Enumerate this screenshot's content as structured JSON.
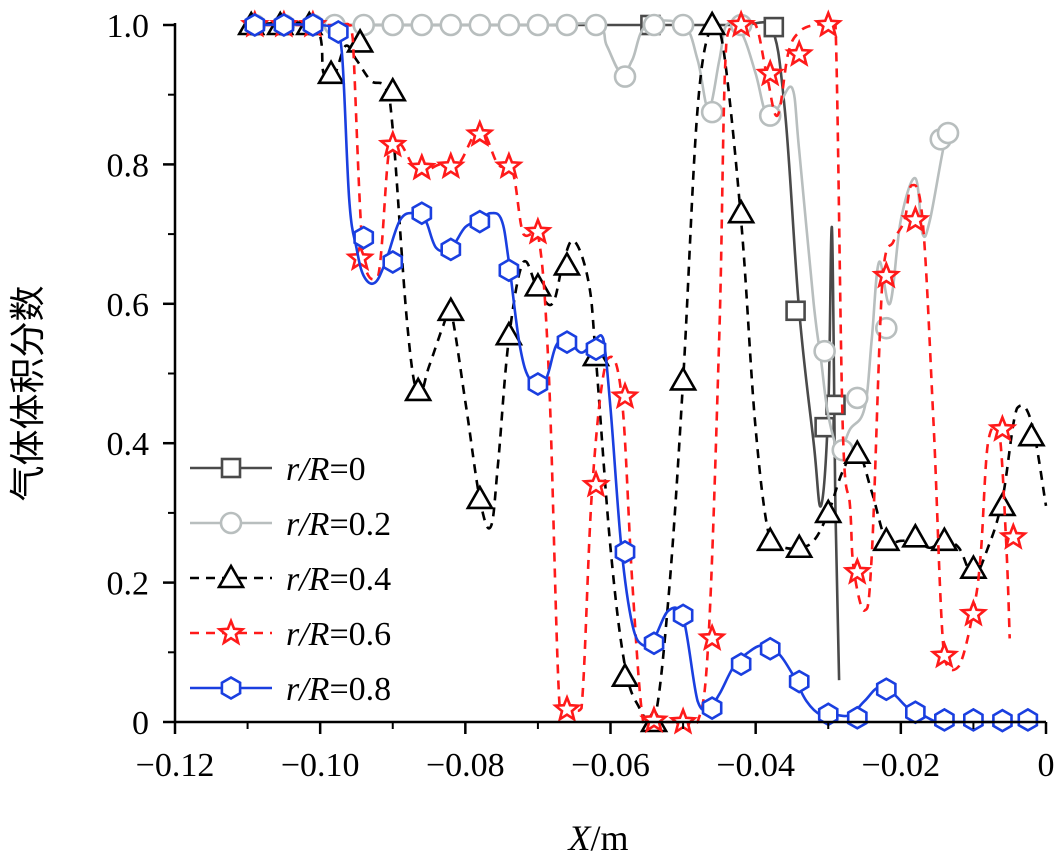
{
  "chart_data": {
    "type": "line",
    "ylabel": "气体体积分数",
    "xlabel_italic": "X",
    "xlabel_unit": "/m",
    "xlim": [
      -0.12,
      0
    ],
    "ylim": [
      0,
      1.0
    ],
    "x_ticks": [
      -0.12,
      -0.1,
      -0.08,
      -0.06,
      -0.04,
      -0.02,
      0
    ],
    "x_tick_labels": [
      "−0.12",
      "−0.10",
      "−0.08",
      "−0.06",
      "−0.04",
      "−0.02",
      "0"
    ],
    "y_ticks": [
      0,
      0.2,
      0.4,
      0.6,
      0.8,
      1.0
    ],
    "y_tick_labels": [
      "0",
      "0.2",
      "0.4",
      "0.6",
      "0.8",
      "1.0"
    ],
    "grid": false,
    "legend_position": "left",
    "series": [
      {
        "name": "r/R=0",
        "label_italic": "r/R",
        "label_value": "=0",
        "color": "#4a4a4a",
        "dash": "",
        "marker": "square",
        "line_x": [
          -0.11,
          -0.1,
          -0.09,
          -0.08,
          -0.07,
          -0.06,
          -0.05,
          -0.042,
          -0.038,
          -0.036,
          -0.034,
          -0.032,
          -0.031,
          -0.03,
          -0.0295,
          -0.029,
          -0.0285
        ],
        "line_y": [
          1.0,
          1.0,
          1.0,
          1.0,
          1.0,
          1.0,
          1.0,
          1.0,
          1.0,
          0.88,
          0.59,
          0.4,
          0.31,
          0.45,
          0.71,
          0.3,
          0.06
        ],
        "markers_x": [
          -0.0545,
          -0.0375,
          -0.0345,
          -0.0305,
          -0.029
        ],
        "markers_y": [
          1.0,
          0.997,
          0.59,
          0.423,
          0.455
        ]
      },
      {
        "name": "r/R=0.2",
        "label_italic": "r/R",
        "label_value": "=0.2",
        "color": "#b8bebe",
        "dash": "",
        "marker": "circle",
        "line_x": [
          -0.11,
          -0.1,
          -0.09,
          -0.07,
          -0.062,
          -0.0605,
          -0.0585,
          -0.057,
          -0.055,
          -0.05,
          -0.048,
          -0.0465,
          -0.045,
          -0.044,
          -0.042,
          -0.04,
          -0.0385,
          -0.037,
          -0.035,
          -0.034,
          -0.032,
          -0.031,
          -0.03,
          -0.0285,
          -0.027,
          -0.025,
          -0.024,
          -0.023,
          -0.0215,
          -0.02,
          -0.018,
          -0.017,
          -0.016,
          -0.014,
          -0.013
        ],
        "line_y": [
          1.0,
          1.0,
          1.0,
          1.0,
          1.0,
          0.97,
          0.93,
          0.95,
          1.0,
          1.0,
          0.95,
          0.88,
          0.95,
          1.0,
          0.99,
          0.93,
          0.87,
          0.88,
          0.91,
          0.82,
          0.6,
          0.52,
          0.44,
          0.39,
          0.42,
          0.45,
          0.55,
          0.66,
          0.6,
          0.72,
          0.78,
          0.7,
          0.72,
          0.83,
          0.85
        ],
        "markers_x": [
          -0.109,
          -0.105,
          -0.101,
          -0.098,
          -0.094,
          -0.09,
          -0.086,
          -0.082,
          -0.078,
          -0.074,
          -0.07,
          -0.066,
          -0.062,
          -0.058,
          -0.054,
          -0.05,
          -0.046,
          -0.042,
          -0.038,
          -0.0305,
          -0.028,
          -0.026,
          -0.022,
          -0.0145,
          -0.0135
        ],
        "markers_y": [
          1.0,
          1.0,
          1.0,
          1.0,
          1.0,
          1.0,
          1.0,
          1.0,
          1.0,
          1.0,
          1.0,
          1.0,
          1.0,
          0.926,
          1.0,
          1.0,
          0.875,
          1.0,
          0.87,
          0.532,
          0.39,
          0.465,
          0.565,
          0.836,
          0.845
        ]
      },
      {
        "name": "r/R=0.4",
        "label_italic": "r/R",
        "label_value": "=0.4",
        "color": "#000000",
        "dash": "9,7",
        "marker": "triangle",
        "line_x": [
          -0.11,
          -0.101,
          -0.0995,
          -0.098,
          -0.0965,
          -0.095,
          -0.093,
          -0.091,
          -0.09,
          -0.088,
          -0.0865,
          -0.085,
          -0.083,
          -0.082,
          -0.08,
          -0.078,
          -0.0765,
          -0.0755,
          -0.074,
          -0.072,
          -0.07,
          -0.068,
          -0.0665,
          -0.065,
          -0.063,
          -0.062,
          -0.06,
          -0.058,
          -0.056,
          -0.054,
          -0.052,
          -0.05,
          -0.048,
          -0.046,
          -0.0445,
          -0.042,
          -0.04,
          -0.038,
          -0.036,
          -0.034,
          -0.032,
          -0.03,
          -0.028,
          -0.026,
          -0.024,
          -0.022,
          -0.02,
          -0.018,
          -0.016,
          -0.014,
          -0.012,
          -0.01,
          -0.008,
          -0.006,
          -0.004,
          -0.002,
          0.0
        ],
        "line_y": [
          1.0,
          1.0,
          0.93,
          0.93,
          0.97,
          0.95,
          0.92,
          0.91,
          0.85,
          0.57,
          0.47,
          0.51,
          0.57,
          0.59,
          0.46,
          0.32,
          0.28,
          0.37,
          0.55,
          0.66,
          0.62,
          0.6,
          0.66,
          0.69,
          0.63,
          0.52,
          0.25,
          0.08,
          0.02,
          0.0,
          0.18,
          0.49,
          0.88,
          1.0,
          0.97,
          0.72,
          0.42,
          0.26,
          0.25,
          0.25,
          0.26,
          0.3,
          0.36,
          0.39,
          0.33,
          0.26,
          0.26,
          0.26,
          0.25,
          0.26,
          0.25,
          0.21,
          0.25,
          0.32,
          0.45,
          0.43,
          0.31
        ],
        "markers_x": [
          -0.1095,
          -0.1055,
          -0.1015,
          -0.0985,
          -0.0945,
          -0.09,
          -0.0865,
          -0.082,
          -0.078,
          -0.074,
          -0.07,
          -0.066,
          -0.062,
          -0.058,
          -0.054,
          -0.05,
          -0.046,
          -0.042,
          -0.038,
          -0.034,
          -0.03,
          -0.026,
          -0.022,
          -0.018,
          -0.014,
          -0.01,
          -0.006,
          -0.002
        ],
        "markers_y": [
          1.0,
          1.0,
          1.0,
          0.93,
          0.975,
          0.905,
          0.475,
          0.59,
          0.32,
          0.555,
          0.625,
          0.655,
          0.525,
          0.065,
          0.0,
          0.49,
          1.0,
          0.73,
          0.26,
          0.25,
          0.3,
          0.385,
          0.26,
          0.265,
          0.26,
          0.22,
          0.31,
          0.41
        ]
      },
      {
        "name": "r/R=0.6",
        "label_italic": "r/R",
        "label_value": "=0.6",
        "color": "#ff1a1a",
        "dash": "9,7",
        "marker": "star",
        "line_x": [
          -0.11,
          -0.1,
          -0.0985,
          -0.097,
          -0.096,
          -0.0955,
          -0.094,
          -0.092,
          -0.0905,
          -0.089,
          -0.0865,
          -0.0835,
          -0.081,
          -0.078,
          -0.0755,
          -0.0735,
          -0.072,
          -0.07,
          -0.0685,
          -0.067,
          -0.0655,
          -0.064,
          -0.0625,
          -0.0605,
          -0.0585,
          -0.057,
          -0.0555,
          -0.054,
          -0.052,
          -0.05,
          -0.048,
          -0.0465,
          -0.045,
          -0.044,
          -0.042,
          -0.04,
          -0.0385,
          -0.037,
          -0.0355,
          -0.034,
          -0.032,
          -0.03,
          -0.029,
          -0.028,
          -0.027,
          -0.0265,
          -0.025,
          -0.024,
          -0.0225,
          -0.021,
          -0.0195,
          -0.0185,
          -0.017,
          -0.0155,
          -0.014,
          -0.012,
          -0.01,
          -0.009,
          -0.008,
          -0.0065,
          -0.0055,
          -0.005
        ],
        "line_y": [
          1.0,
          1.0,
          1.0,
          1.0,
          1.0,
          0.98,
          0.66,
          0.64,
          0.82,
          0.83,
          0.79,
          0.8,
          0.8,
          0.85,
          0.8,
          0.79,
          0.7,
          0.7,
          0.5,
          0.02,
          0.02,
          0.02,
          0.34,
          0.52,
          0.47,
          0.2,
          0.0,
          0.0,
          0.0,
          0.0,
          0.0,
          0.12,
          0.56,
          0.98,
          1.0,
          1.0,
          0.93,
          0.87,
          0.96,
          0.99,
          1.0,
          1.0,
          1.0,
          0.42,
          0.31,
          0.22,
          0.16,
          0.24,
          0.64,
          0.69,
          0.72,
          0.77,
          0.72,
          0.43,
          0.09,
          0.08,
          0.16,
          0.24,
          0.4,
          0.42,
          0.26,
          0.12
        ],
        "markers_x": [
          -0.109,
          -0.105,
          -0.101,
          -0.0945,
          -0.09,
          -0.086,
          -0.082,
          -0.078,
          -0.074,
          -0.07,
          -0.066,
          -0.062,
          -0.058,
          -0.054,
          -0.05,
          -0.046,
          -0.042,
          -0.038,
          -0.034,
          -0.03,
          -0.026,
          -0.022,
          -0.018,
          -0.014,
          -0.01,
          -0.006,
          -0.0045
        ],
        "markers_y": [
          1.0,
          1.0,
          1.0,
          0.665,
          0.828,
          0.795,
          0.797,
          0.843,
          0.797,
          0.703,
          0.018,
          0.34,
          0.467,
          0.002,
          0.0,
          0.12,
          1.0,
          0.93,
          0.958,
          1.0,
          0.215,
          0.64,
          0.72,
          0.095,
          0.155,
          0.42,
          0.265
        ]
      },
      {
        "name": "r/R=0.8",
        "label_italic": "r/R",
        "label_value": "=0.8",
        "color": "#1a3fe0",
        "dash": "",
        "marker": "hexagon",
        "line_x": [
          -0.11,
          -0.1,
          -0.098,
          -0.097,
          -0.096,
          -0.095,
          -0.094,
          -0.0925,
          -0.091,
          -0.089,
          -0.087,
          -0.0855,
          -0.084,
          -0.082,
          -0.08,
          -0.078,
          -0.0765,
          -0.075,
          -0.074,
          -0.0725,
          -0.071,
          -0.069,
          -0.0675,
          -0.066,
          -0.064,
          -0.062,
          -0.061,
          -0.06,
          -0.0585,
          -0.057,
          -0.0555,
          -0.054,
          -0.052,
          -0.05,
          -0.048,
          -0.0465,
          -0.045,
          -0.043,
          -0.041,
          -0.039,
          -0.037,
          -0.035,
          -0.033,
          -0.031,
          -0.029,
          -0.027,
          -0.025,
          -0.023,
          -0.021,
          -0.019,
          -0.017,
          -0.015,
          -0.013,
          -0.011,
          -0.009,
          -0.007,
          -0.005,
          -0.003,
          -0.002
        ],
        "line_y": [
          1.0,
          1.0,
          0.99,
          0.96,
          0.75,
          0.68,
          0.64,
          0.63,
          0.66,
          0.72,
          0.73,
          0.72,
          0.68,
          0.68,
          0.71,
          0.72,
          0.73,
          0.72,
          0.66,
          0.54,
          0.49,
          0.49,
          0.54,
          0.55,
          0.53,
          0.55,
          0.55,
          0.45,
          0.25,
          0.14,
          0.11,
          0.12,
          0.16,
          0.15,
          0.03,
          0.02,
          0.04,
          0.08,
          0.1,
          0.11,
          0.1,
          0.07,
          0.03,
          0.01,
          0.01,
          0.01,
          0.03,
          0.05,
          0.04,
          0.02,
          0.01,
          0.0,
          0.0,
          0.0,
          0.0,
          0.0,
          0.0,
          0.0,
          0.0
        ],
        "markers_x": [
          -0.109,
          -0.105,
          -0.101,
          -0.0975,
          -0.094,
          -0.09,
          -0.086,
          -0.082,
          -0.078,
          -0.074,
          -0.07,
          -0.066,
          -0.062,
          -0.058,
          -0.054,
          -0.05,
          -0.046,
          -0.042,
          -0.038,
          -0.034,
          -0.03,
          -0.026,
          -0.022,
          -0.018,
          -0.014,
          -0.01,
          -0.006,
          -0.0025
        ],
        "markers_y": [
          1.0,
          1.0,
          1.0,
          0.99,
          0.695,
          0.66,
          0.73,
          0.678,
          0.718,
          0.648,
          0.485,
          0.545,
          0.535,
          0.244,
          0.113,
          0.153,
          0.02,
          0.083,
          0.105,
          0.058,
          0.011,
          0.006,
          0.047,
          0.014,
          0.003,
          0.003,
          0.002,
          0.003
        ]
      }
    ]
  }
}
